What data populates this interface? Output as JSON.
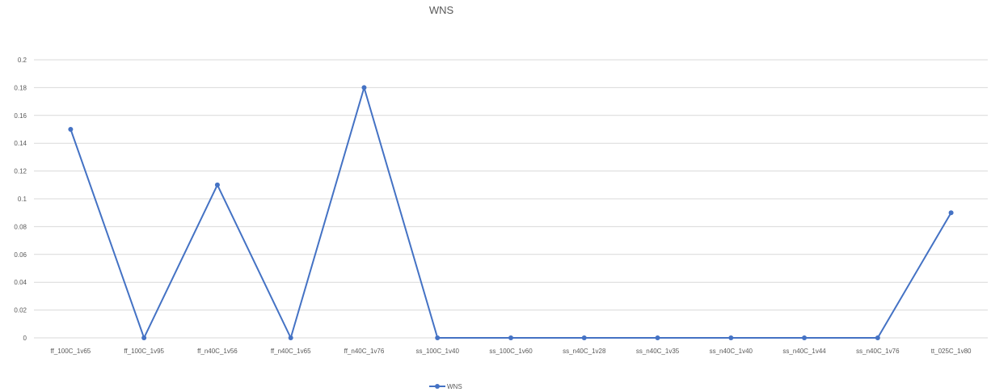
{
  "chart_data": {
    "type": "line",
    "title": "WNS",
    "categories": [
      "ff_100C_1v65",
      "ff_100C_1v95",
      "ff_n40C_1v56",
      "ff_n40C_1v65",
      "ff_n40C_1v76",
      "ss_100C_1v40",
      "ss_100C_1v60",
      "ss_n40C_1v28",
      "ss_n40C_1v35",
      "ss_n40C_1v40",
      "ss_n40C_1v44",
      "ss_n40C_1v76",
      "tt_025C_1v80"
    ],
    "series": [
      {
        "name": "WNS",
        "values": [
          0.15,
          0,
          0.11,
          0,
          0.18,
          0,
          0,
          0,
          0,
          0,
          0,
          0,
          0.09
        ]
      }
    ],
    "yticks": [
      "0",
      "0.02",
      "0.04",
      "0.06",
      "0.08",
      "0.1",
      "0.12",
      "0.14",
      "0.16",
      "0.18",
      "0.2"
    ],
    "ylim": [
      0,
      0.2
    ],
    "grid": true,
    "legend": "bottom",
    "colors": {
      "series": "#4472c4"
    }
  }
}
